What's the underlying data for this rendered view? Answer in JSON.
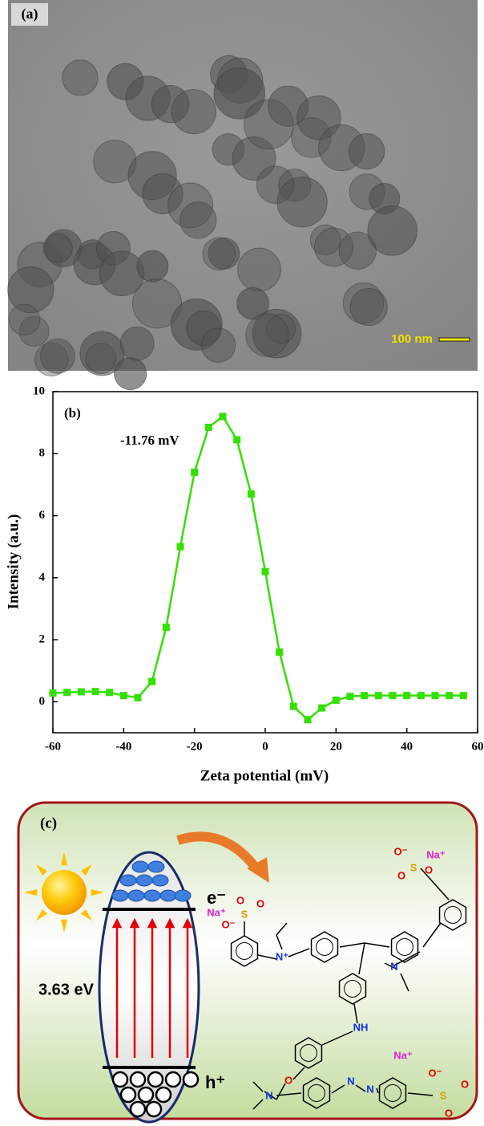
{
  "panel_a": {
    "label": "(a)",
    "scale_bar": "100 nm"
  },
  "chart_data": {
    "type": "line",
    "label": "(b)",
    "annotation": "-11.76 mV",
    "xlabel": "Zeta potential (mV)",
    "ylabel": "Intensity (a.u.)",
    "x": [
      -60,
      -56,
      -52,
      -48,
      -44,
      -40,
      -36,
      -32,
      -28,
      -24,
      -20,
      -16,
      -12,
      -8,
      -4,
      0,
      4,
      8,
      12,
      16,
      20,
      24,
      28,
      32,
      36,
      40,
      44,
      48,
      52,
      56
    ],
    "series": [
      {
        "color": "#33e000",
        "values": [
          0.28,
          0.3,
          0.32,
          0.33,
          0.3,
          0.2,
          0.13,
          0.65,
          2.4,
          5.0,
          7.4,
          8.85,
          9.2,
          8.45,
          6.7,
          4.2,
          1.6,
          -0.15,
          -0.58,
          -0.2,
          0.05,
          0.17,
          0.2,
          0.2,
          0.2,
          0.2,
          0.2,
          0.2,
          0.2,
          0.2
        ]
      }
    ],
    "xlim": [
      -60,
      60
    ],
    "xticks": [
      -60,
      -40,
      -20,
      0,
      20,
      40,
      60
    ],
    "ylim": [
      -1,
      10
    ],
    "yticks": [
      0,
      2,
      4,
      6,
      8,
      10
    ]
  },
  "panel_c": {
    "label": "(c)",
    "band_gap": "3.63 eV",
    "electron": "e⁻",
    "hole": "h⁺",
    "dye_1": {
      "atoms": [
        "Na⁺",
        "S",
        "O",
        "O",
        "O⁻",
        "N⁺",
        "N",
        "O⁻",
        "Na⁺",
        "S",
        "O",
        "O",
        "NH",
        "O"
      ]
    },
    "dye_2": {
      "atoms": [
        "N",
        "N",
        "N",
        "Na⁺",
        "O⁻",
        "S",
        "O",
        "O"
      ]
    }
  }
}
